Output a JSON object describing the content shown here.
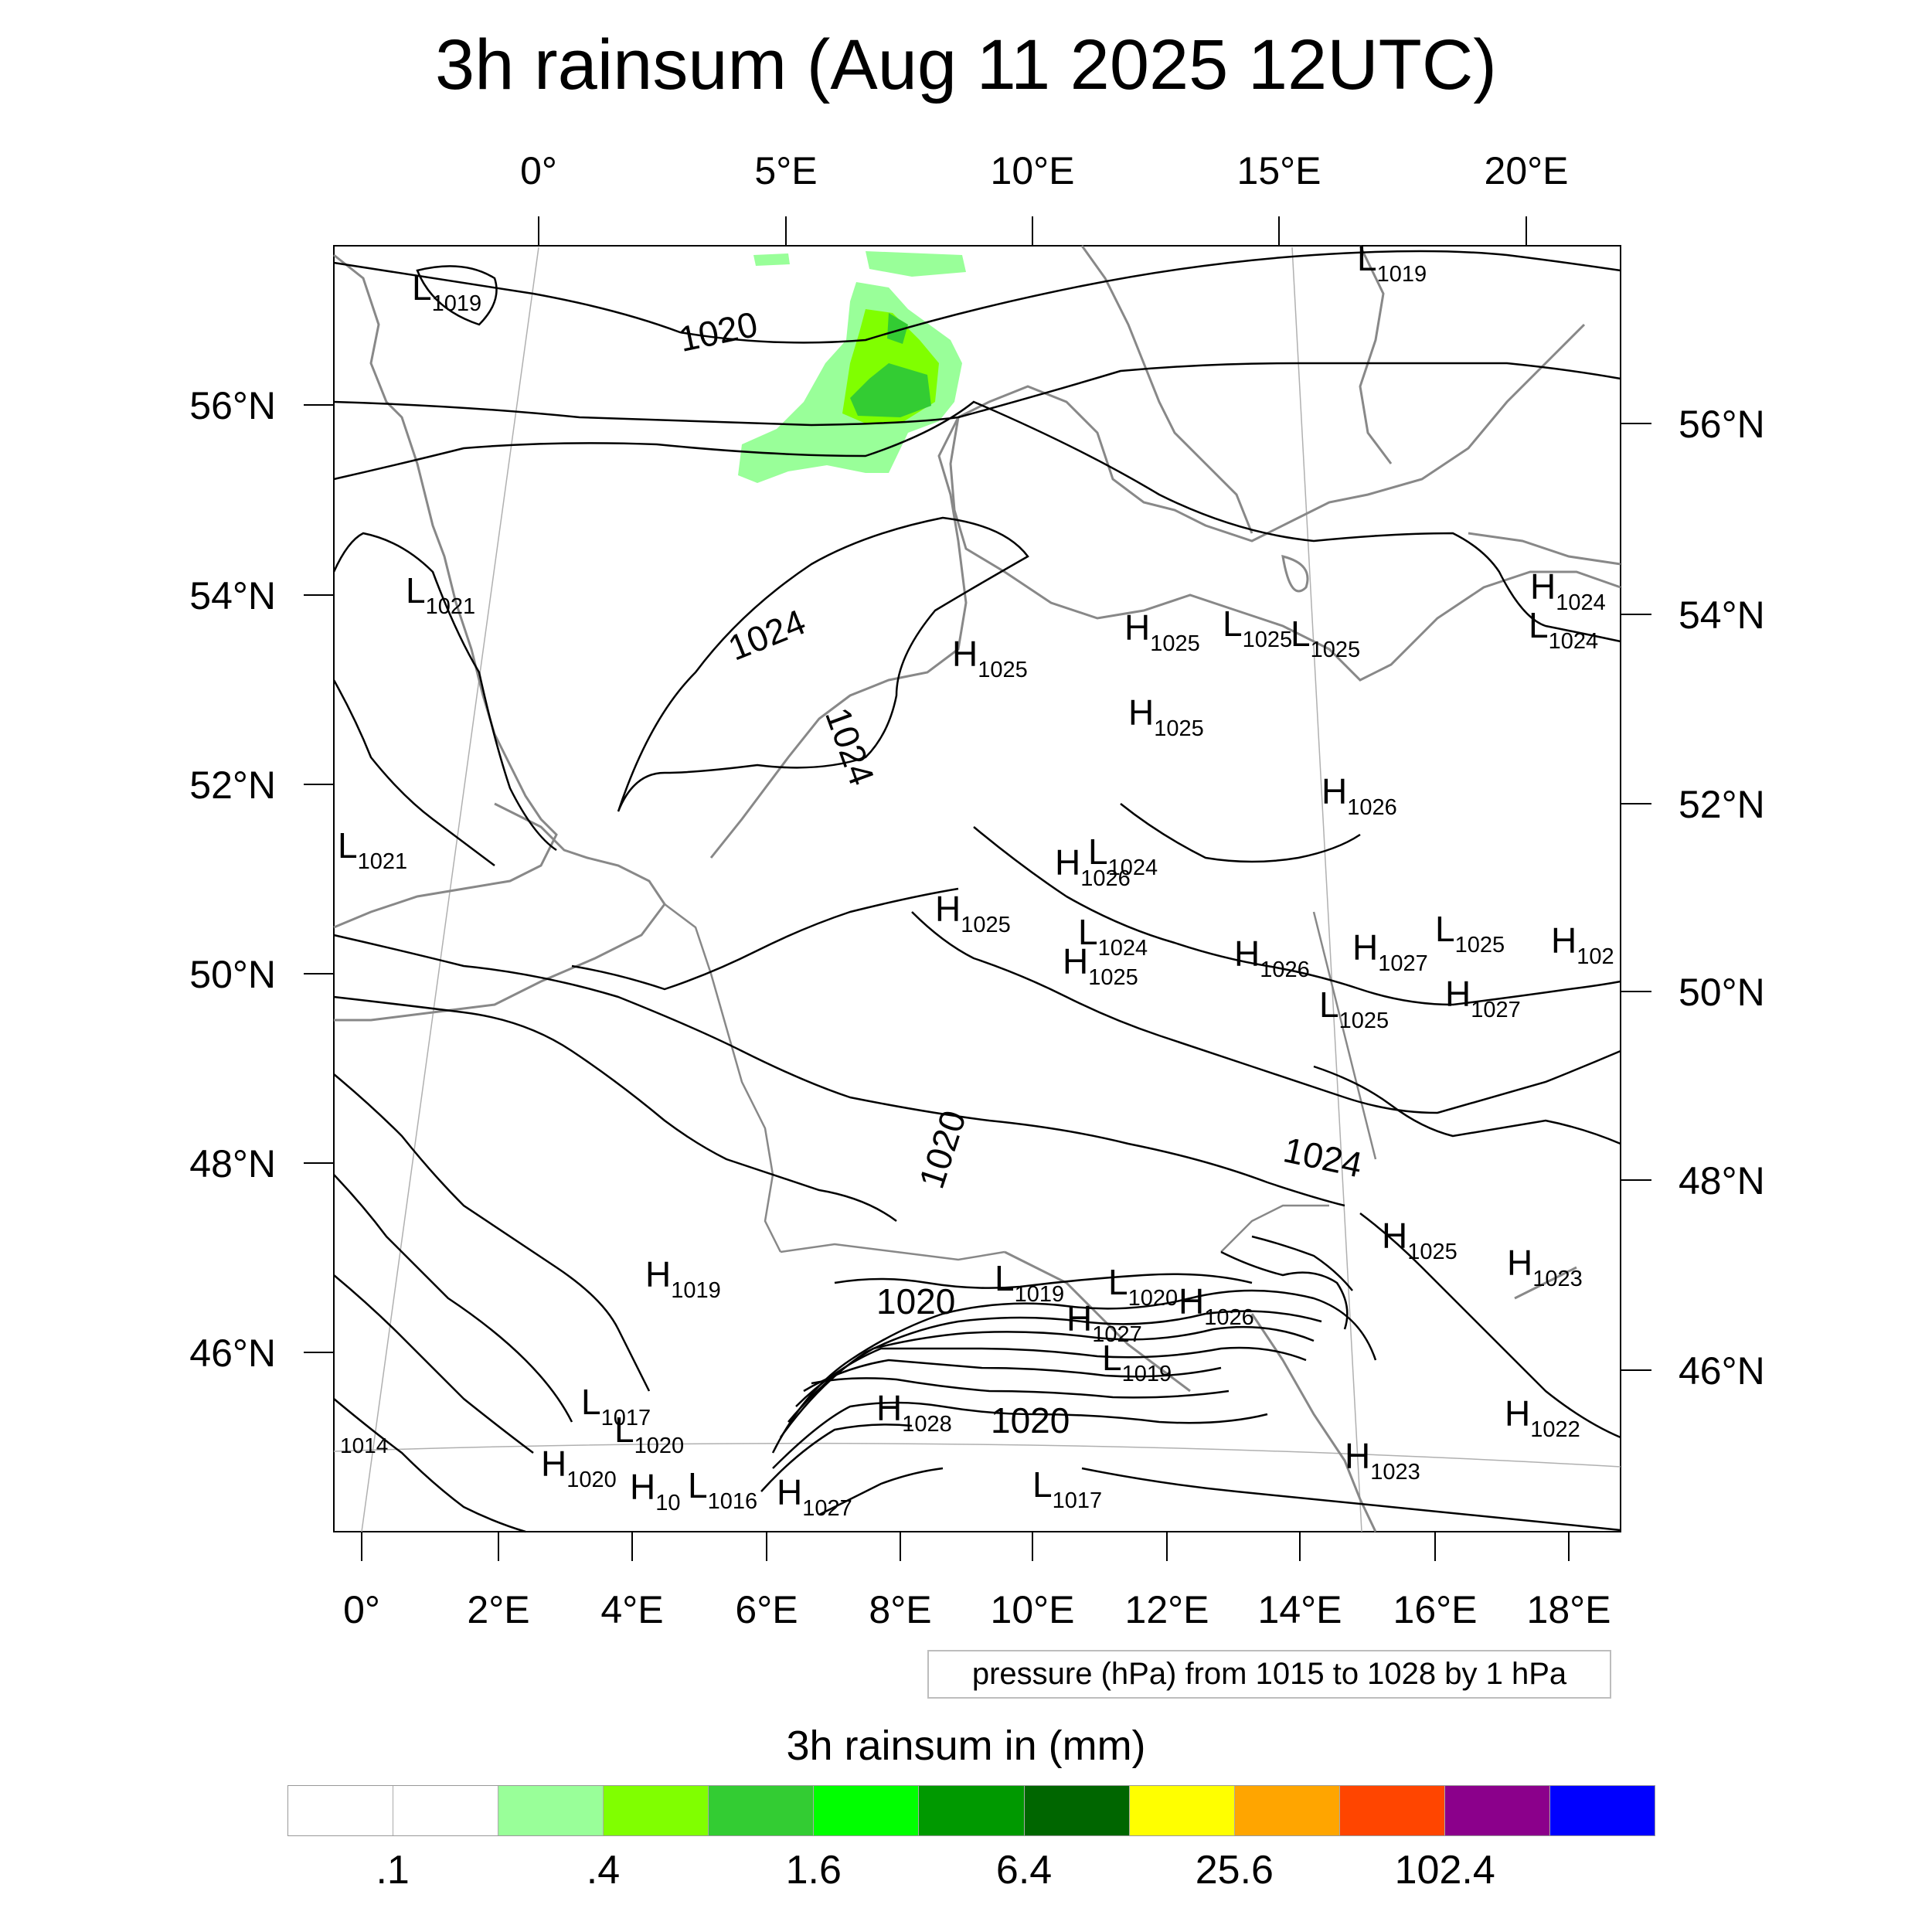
{
  "title": "3h rainsum (Aug 11 2025 12UTC)",
  "top_lon_labels": [
    "0°",
    "5°E",
    "10°E",
    "15°E",
    "20°E"
  ],
  "bottom_lon_labels": [
    "0°",
    "2°E",
    "4°E",
    "6°E",
    "8°E",
    "10°E",
    "12°E",
    "14°E",
    "16°E",
    "18°E"
  ],
  "left_lat_labels": [
    "56°N",
    "54°N",
    "52°N",
    "50°N",
    "48°N",
    "46°N"
  ],
  "right_lat_labels": [
    "56°N",
    "54°N",
    "52°N",
    "50°N",
    "48°N",
    "46°N"
  ],
  "isobar_labels": [
    "1020",
    "1024",
    "1024",
    "1020",
    "1024",
    "1020",
    "1020",
    "1014"
  ],
  "pressure_centers": [
    {
      "type": "L",
      "value": "1019"
    },
    {
      "type": "L",
      "value": "1019"
    },
    {
      "type": "L",
      "value": "1021"
    },
    {
      "type": "L",
      "value": "1021"
    },
    {
      "type": "H",
      "value": "1025"
    },
    {
      "type": "H",
      "value": "1025"
    },
    {
      "type": "L",
      "value": "1025"
    },
    {
      "type": "L",
      "value": "1025"
    },
    {
      "type": "H",
      "value": "1024"
    },
    {
      "type": "L",
      "value": "1024"
    },
    {
      "type": "H",
      "value": "1025"
    },
    {
      "type": "H",
      "value": "1026"
    },
    {
      "type": "H",
      "value": "1026"
    },
    {
      "type": "L",
      "value": "1024"
    },
    {
      "type": "H",
      "value": "1025"
    },
    {
      "type": "L",
      "value": "1024"
    },
    {
      "type": "H",
      "value": "1025"
    },
    {
      "type": "H",
      "value": "1026"
    },
    {
      "type": "H",
      "value": "1027"
    },
    {
      "type": "L",
      "value": "1025"
    },
    {
      "type": "H",
      "value": "102"
    },
    {
      "type": "L",
      "value": "1025"
    },
    {
      "type": "H",
      "value": "1027"
    },
    {
      "type": "H",
      "value": "1025"
    },
    {
      "type": "H",
      "value": "1023"
    },
    {
      "type": "H",
      "value": "1019"
    },
    {
      "type": "L",
      "value": "1019"
    },
    {
      "type": "L",
      "value": "1020"
    },
    {
      "type": "H",
      "value": "1026"
    },
    {
      "type": "H",
      "value": "1027"
    },
    {
      "type": "L",
      "value": "1019"
    },
    {
      "type": "L",
      "value": "1017"
    },
    {
      "type": "L",
      "value": "1020"
    },
    {
      "type": "H",
      "value": "1028"
    },
    {
      "type": "H",
      "value": "1022"
    },
    {
      "type": "H",
      "value": "1023"
    },
    {
      "type": "H",
      "value": "1020"
    },
    {
      "type": "H",
      "value": "10"
    },
    {
      "type": "L",
      "value": "1016"
    },
    {
      "type": "H",
      "value": "1027"
    },
    {
      "type": "L",
      "value": "1017"
    }
  ],
  "pressure_note": "pressure (hPa) from 1015 to 1028 by 1 hPa",
  "legend_title": "3h rainsum in (mm)",
  "colorbar_colors": [
    "#ffffff",
    "#ffffff",
    "#99ff99",
    "#80ff00",
    "#33cc33",
    "#00ff00",
    "#009900",
    "#006600",
    "#ffff00",
    "#ffa500",
    "#ff4500",
    "#8b008b",
    "#0000ff"
  ],
  "colorbar_ticks": [
    ".1",
    ".4",
    "1.6",
    "6.4",
    "25.6",
    "102.4"
  ],
  "rain_color_light": "#99ff99",
  "rain_color_mid": "#80ff00",
  "rain_color_dark": "#33cc33"
}
